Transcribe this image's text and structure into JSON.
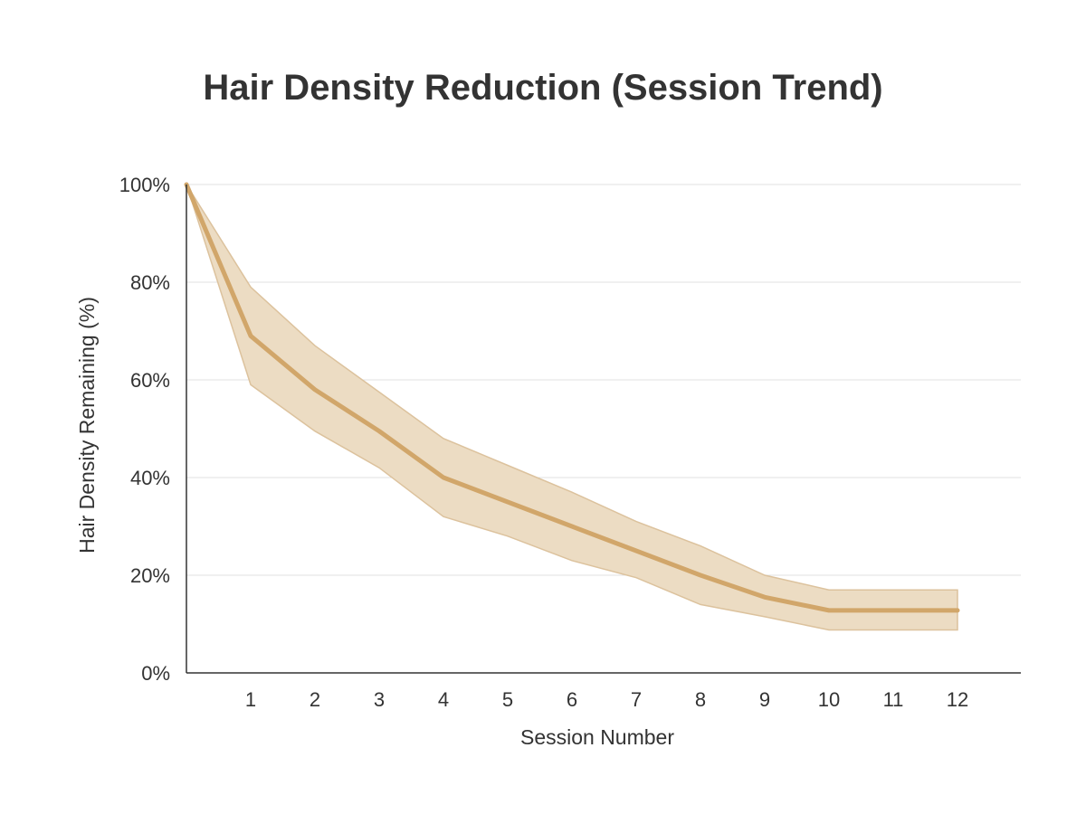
{
  "chart_data": {
    "type": "line",
    "title": "Hair Density Reduction (Session Trend)",
    "xlabel": "Session Number",
    "ylabel": "Hair Density Remaining (%)",
    "x": [
      0,
      1,
      2,
      3,
      4,
      5,
      6,
      7,
      8,
      9,
      10,
      11,
      12
    ],
    "x_tick_labels": [
      "1",
      "2",
      "3",
      "4",
      "5",
      "6",
      "7",
      "8",
      "9",
      "10",
      "11",
      "12"
    ],
    "y_tick_labels": [
      "0%",
      "20%",
      "40%",
      "60%",
      "80%",
      "100%"
    ],
    "xlim": [
      0,
      13
    ],
    "ylim": [
      0,
      100
    ],
    "grid": true,
    "series": [
      {
        "values": [
          100,
          69,
          58,
          49.5,
          40,
          35,
          30,
          25,
          20,
          15.5,
          12.8,
          12.8,
          12.8
        ],
        "upper": [
          100,
          79,
          67,
          57.5,
          48,
          42.5,
          37,
          31,
          26,
          20,
          17,
          17,
          17
        ],
        "lower": [
          100,
          59,
          49.5,
          42,
          32,
          28,
          23,
          19.5,
          14,
          11.5,
          8.8,
          8.8,
          8.8
        ]
      }
    ],
    "colors": {
      "line": "#d1a66a",
      "band": "#ecdcc3",
      "band_edge": "#dcc29d",
      "axis": "#333333",
      "grid": "#e2e2e2",
      "text": "#333333"
    }
  }
}
